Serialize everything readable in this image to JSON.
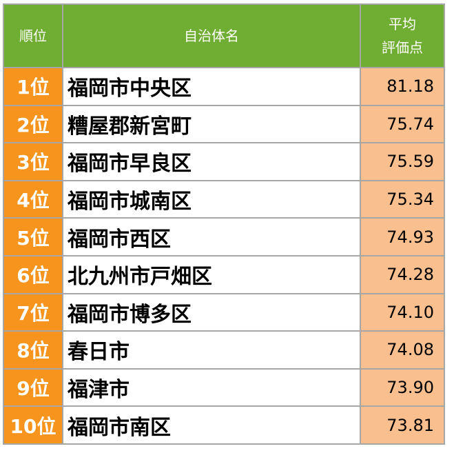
{
  "chart_data": {
    "type": "table",
    "headers": {
      "rank": "順位",
      "name": "自治体名",
      "score_line1": "平均",
      "score_line2": "評価点"
    },
    "rows": [
      {
        "rank": "1位",
        "name": "福岡市中央区",
        "score": "81.18"
      },
      {
        "rank": "2位",
        "name": "糟屋郡新宮町",
        "score": "75.74"
      },
      {
        "rank": "3位",
        "name": "福岡市早良区",
        "score": "75.59"
      },
      {
        "rank": "4位",
        "name": "福岡市城南区",
        "score": "75.34"
      },
      {
        "rank": "5位",
        "name": "福岡市西区",
        "score": "74.93"
      },
      {
        "rank": "6位",
        "name": "北九州市戸畑区",
        "score": "74.28"
      },
      {
        "rank": "7位",
        "name": "福岡市博多区",
        "score": "74.10"
      },
      {
        "rank": "8位",
        "name": "春日市",
        "score": "74.08"
      },
      {
        "rank": "9位",
        "name": "福津市",
        "score": "73.90"
      },
      {
        "rank": "10位",
        "name": "福岡市南区",
        "score": "73.81"
      }
    ]
  },
  "colors": {
    "header_bg": "#70ad33",
    "rank_bg": "#f7941d",
    "score_bg": "#f9bf8f",
    "border": "#a6a6a6"
  }
}
